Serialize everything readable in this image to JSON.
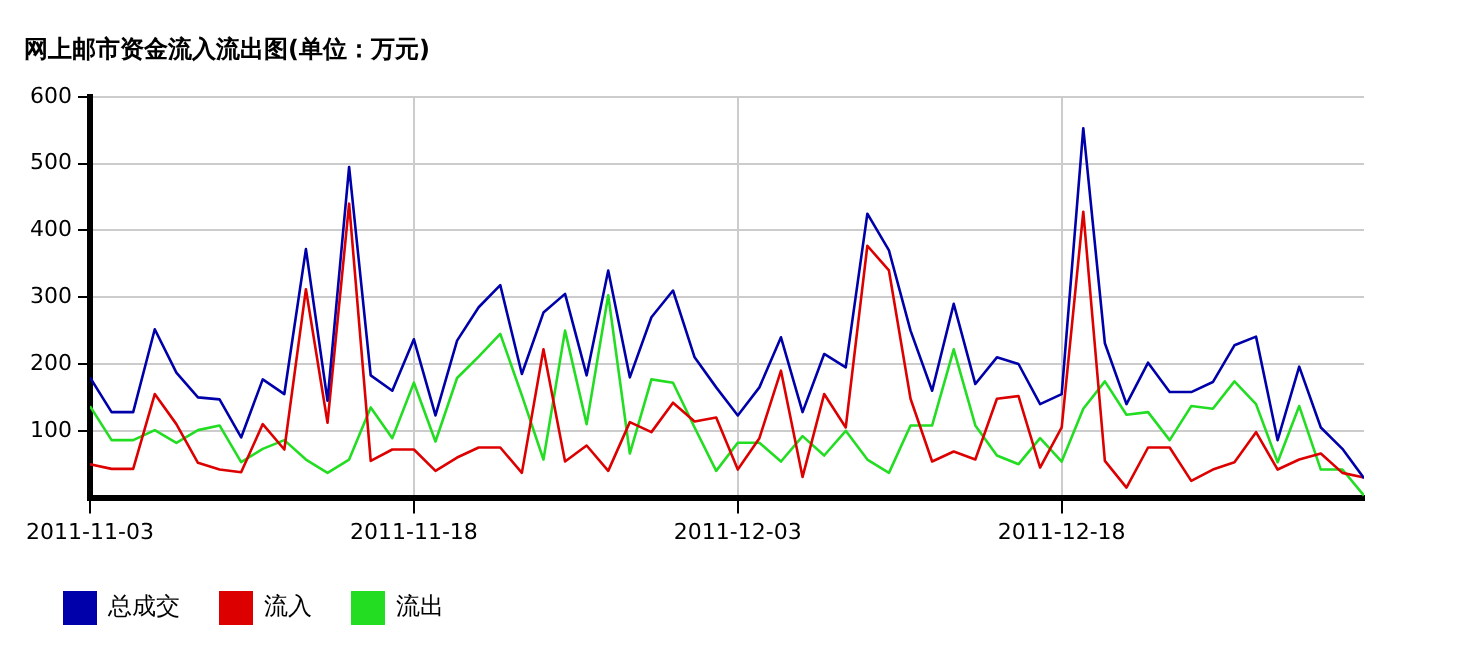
{
  "chart_data": {
    "type": "line",
    "title": "网上邮市资金流入流出图(单位：万元)",
    "x": [
      "2011-11-03",
      "2011-11-04",
      "2011-11-05",
      "2011-11-06",
      "2011-11-07",
      "2011-11-08",
      "2011-11-09",
      "2011-11-10",
      "2011-11-11",
      "2011-11-12",
      "2011-11-13",
      "2011-11-14",
      "2011-11-15",
      "2011-11-16",
      "2011-11-17",
      "2011-11-18",
      "2011-11-19",
      "2011-11-20",
      "2011-11-21",
      "2011-11-22",
      "2011-11-23",
      "2011-11-24",
      "2011-11-25",
      "2011-11-26",
      "2011-11-27",
      "2011-11-28",
      "2011-11-29",
      "2011-11-30",
      "2011-12-01",
      "2011-12-02",
      "2011-12-03",
      "2011-12-04",
      "2011-12-05",
      "2011-12-06",
      "2011-12-07",
      "2011-12-08",
      "2011-12-09",
      "2011-12-10",
      "2011-12-11",
      "2011-12-12",
      "2011-12-13",
      "2011-12-14",
      "2011-12-15",
      "2011-12-16",
      "2011-12-17",
      "2011-12-18",
      "2011-12-19",
      "2011-12-20",
      "2011-12-21",
      "2011-12-22",
      "2011-12-23",
      "2011-12-24",
      "2011-12-25",
      "2011-12-26",
      "2011-12-27",
      "2011-12-28",
      "2011-12-29",
      "2011-12-30",
      "2011-12-31",
      "2012-01-01"
    ],
    "series": [
      {
        "name": "总成交",
        "color": "#0000aa",
        "values": [
          180,
          128,
          128,
          252,
          187,
          150,
          147,
          90,
          177,
          155,
          372,
          145,
          495,
          183,
          160,
          237,
          123,
          235,
          285,
          318,
          185,
          277,
          305,
          183,
          340,
          180,
          270,
          310,
          210,
          165,
          123,
          165,
          240,
          128,
          215,
          195,
          425,
          370,
          250,
          160,
          290,
          170,
          210,
          200,
          140,
          155,
          553,
          231,
          140,
          202,
          158,
          158,
          173,
          228,
          241,
          86,
          196,
          105,
          73,
          29
        ]
      },
      {
        "name": "流入",
        "color": "#dd0000",
        "values": [
          50,
          43,
          43,
          155,
          110,
          52,
          42,
          38,
          110,
          72,
          312,
          112,
          440,
          55,
          72,
          72,
          40,
          60,
          75,
          75,
          37,
          222,
          54,
          78,
          40,
          113,
          98,
          142,
          114,
          120,
          42,
          89,
          190,
          31,
          155,
          105,
          377,
          340,
          148,
          54,
          69,
          57,
          148,
          152,
          45,
          105,
          428,
          55,
          15,
          75,
          75,
          25,
          42,
          53,
          98,
          42,
          57,
          66,
          37,
          30
        ]
      },
      {
        "name": "流出",
        "color": "#22dd22",
        "values": [
          137,
          86,
          86,
          101,
          82,
          101,
          108,
          53,
          73,
          86,
          57,
          37,
          57,
          135,
          89,
          172,
          84,
          179,
          211,
          245,
          153,
          57,
          250,
          110,
          303,
          66,
          177,
          172,
          105,
          40,
          82,
          82,
          54,
          92,
          63,
          100,
          57,
          37,
          108,
          108,
          222,
          108,
          63,
          50,
          89,
          54,
          133,
          174,
          124,
          128,
          86,
          137,
          133,
          174,
          140,
          53,
          137,
          42,
          42,
          3
        ]
      }
    ],
    "xlim": [
      "2011-11-03",
      "2012-01-01"
    ],
    "xticks": [
      "2011-11-03",
      "2011-11-18",
      "2011-12-03",
      "2011-12-18"
    ],
    "ylim": [
      0,
      600
    ],
    "yticks": [
      100,
      200,
      300,
      400,
      500,
      600
    ],
    "grid": true,
    "legend": "bottom",
    "marker": "none",
    "line_style": "solid"
  }
}
